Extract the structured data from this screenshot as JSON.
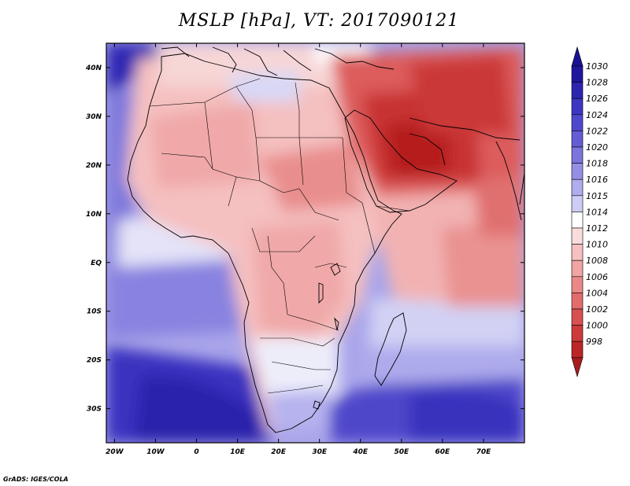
{
  "title": "MSLP [hPa], VT: 2017090121",
  "credit": "GrADS: IGES/COLA",
  "map": {
    "lon_range": [
      -22,
      80
    ],
    "lat_range": [
      -37,
      45
    ],
    "lon_ticks": [
      {
        "lon": -20,
        "label": "20W"
      },
      {
        "lon": -10,
        "label": "10W"
      },
      {
        "lon": 0,
        "label": "0"
      },
      {
        "lon": 10,
        "label": "10E"
      },
      {
        "lon": 20,
        "label": "20E"
      },
      {
        "lon": 30,
        "label": "30E"
      },
      {
        "lon": 40,
        "label": "40E"
      },
      {
        "lon": 50,
        "label": "50E"
      },
      {
        "lon": 60,
        "label": "60E"
      },
      {
        "lon": 70,
        "label": "70E"
      }
    ],
    "lat_ticks": [
      {
        "lat": 40,
        "label": "40N"
      },
      {
        "lat": 30,
        "label": "30N"
      },
      {
        "lat": 20,
        "label": "20N"
      },
      {
        "lat": 10,
        "label": "10N"
      },
      {
        "lat": 0,
        "label": "EQ"
      },
      {
        "lat": -10,
        "label": "10S"
      },
      {
        "lat": -20,
        "label": "20S"
      },
      {
        "lat": -30,
        "label": "30S"
      }
    ]
  },
  "colorbar": {
    "levels": [
      {
        "label": "1030",
        "color": "#1f16a0"
      },
      {
        "label": "1028",
        "color": "#2d25b0"
      },
      {
        "label": "1026",
        "color": "#3d36c2"
      },
      {
        "label": "1024",
        "color": "#5048cc"
      },
      {
        "label": "1022",
        "color": "#645cd4"
      },
      {
        "label": "1020",
        "color": "#7a74dc"
      },
      {
        "label": "1018",
        "color": "#948fe4"
      },
      {
        "label": "1016",
        "color": "#b0adec"
      },
      {
        "label": "1015",
        "color": "#ccccf4"
      },
      {
        "label": "1014",
        "color": "#ffffff"
      },
      {
        "label": "1012",
        "color": "#fbdcdc"
      },
      {
        "label": "1010",
        "color": "#f6c0c0"
      },
      {
        "label": "1008",
        "color": "#f0a4a4"
      },
      {
        "label": "1006",
        "color": "#ea8888"
      },
      {
        "label": "1004",
        "color": "#e26c6c"
      },
      {
        "label": "1002",
        "color": "#d85050"
      },
      {
        "label": "1000",
        "color": "#cc3a3a"
      },
      {
        "label": "998",
        "color": "#bb2626"
      }
    ],
    "top_color": "#1a1293",
    "bottom_color": "#a81c1c"
  }
}
